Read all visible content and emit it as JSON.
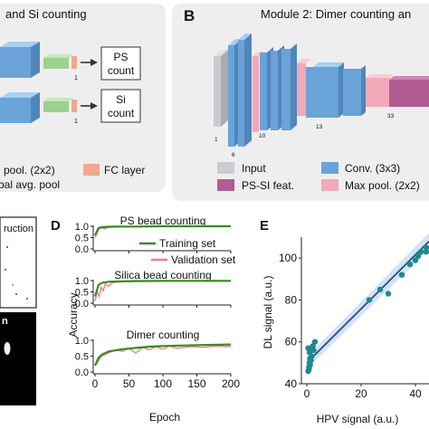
{
  "panelA": {
    "title": "and Si counting",
    "ps_label_1": "PS",
    "ps_label_2": "count",
    "si_label_1": "Si",
    "si_label_2": "count",
    "unit_top": "1",
    "unit_bottom": "1",
    "legend_pool": "pool. (2x2)",
    "legend_fc": "FC layer",
    "legend_avg": "bal avg. pool",
    "colors": {
      "panel_bg": "#eeeeee",
      "blue": "#6aa3d8",
      "green": "#9ed08f",
      "pink": "#f5b7c4",
      "salmon": "#f0a890"
    }
  },
  "panelB": {
    "letter": "B",
    "title": "Module 2: Dimer counting an",
    "layer_labels": [
      "1",
      "6",
      "10",
      "13",
      "33"
    ],
    "legend": {
      "input": "Input",
      "conv": "Conv. (3x3)",
      "ps_si": "PS-SI feat.",
      "maxpool": "Max pool. (2x2)"
    },
    "colors": {
      "input": "#c8ccd0",
      "conv": "#6aa3d8",
      "ps_si": "#b15b93",
      "maxpool": "#f2a9b9"
    }
  },
  "panelC": {
    "title_fragment": "ruction",
    "inset_label": "n"
  },
  "panelD": {
    "letter": "D",
    "ylabel": "Accuracy",
    "xlabel": "Epoch",
    "legend_train": "Training set",
    "legend_val": "Validation set"
  },
  "panelE": {
    "letter": "E",
    "ylabel": "DL signal (a.u.)",
    "xlabel": "HPV signal (a.u.)"
  },
  "chart_data": [
    {
      "type": "line",
      "title": "PS bead counting",
      "xlabel": "Epoch",
      "ylabel": "Accuracy",
      "xlim": [
        0,
        200
      ],
      "ylim": [
        0,
        1
      ],
      "xticks": [
        0,
        50,
        100,
        150,
        200
      ],
      "yticks": [
        "0.0",
        "0.5",
        "1.0"
      ],
      "series": [
        {
          "name": "Training set",
          "color": "#3a8a2a",
          "x": [
            0,
            5,
            10,
            20,
            40,
            60,
            100,
            150,
            200
          ],
          "y": [
            0.6,
            0.92,
            0.96,
            0.98,
            0.99,
            0.99,
            1.0,
            1.0,
            1.0
          ]
        },
        {
          "name": "Validation set",
          "color": "#f08080",
          "x": [
            0,
            5,
            10,
            15,
            20,
            30,
            40,
            60,
            100,
            150,
            200
          ],
          "y": [
            0.5,
            0.85,
            0.93,
            0.9,
            0.96,
            0.97,
            0.98,
            0.98,
            0.99,
            0.99,
            0.99
          ]
        }
      ]
    },
    {
      "type": "line",
      "title": "Silica bead counting",
      "xlabel": "Epoch",
      "ylabel": "Accuracy",
      "xlim": [
        0,
        200
      ],
      "ylim": [
        0,
        1
      ],
      "xticks": [
        0,
        50,
        100,
        150,
        200
      ],
      "yticks": [
        "0.0",
        "0.5",
        "1.0"
      ],
      "series": [
        {
          "name": "Training set",
          "color": "#3a8a2a",
          "x": [
            0,
            5,
            10,
            20,
            40,
            60,
            100,
            150,
            200
          ],
          "y": [
            0.3,
            0.8,
            0.9,
            0.95,
            0.97,
            0.98,
            0.99,
            0.99,
            0.99
          ]
        },
        {
          "name": "Validation set",
          "color": "#f08080",
          "x": [
            0,
            3,
            6,
            9,
            12,
            15,
            20,
            25,
            30,
            40,
            60,
            100,
            150,
            200
          ],
          "y": [
            0.1,
            0.5,
            0.3,
            0.7,
            0.55,
            0.85,
            0.75,
            0.9,
            0.93,
            0.95,
            0.96,
            0.97,
            0.97,
            0.97
          ]
        }
      ]
    },
    {
      "type": "line",
      "title": "Dimer counting",
      "xlabel": "Epoch",
      "ylabel": "Accuracy",
      "xlim": [
        0,
        200
      ],
      "ylim": [
        0,
        1
      ],
      "xticks": [
        0,
        50,
        100,
        150,
        200
      ],
      "yticks": [
        "0.0",
        "0.5",
        "1.0"
      ],
      "series": [
        {
          "name": "Training set",
          "color": "#3a8a2a",
          "x": [
            0,
            5,
            10,
            20,
            40,
            60,
            80,
            100,
            150,
            200
          ],
          "y": [
            0.2,
            0.45,
            0.55,
            0.65,
            0.72,
            0.76,
            0.8,
            0.82,
            0.85,
            0.87
          ]
        },
        {
          "name": "Validation set",
          "color": "#f08080",
          "x": [
            0,
            10,
            20,
            30,
            40,
            50,
            60,
            70,
            80,
            90,
            100,
            110,
            120,
            140,
            160,
            180,
            200
          ],
          "y": [
            0.2,
            0.5,
            0.6,
            0.7,
            0.65,
            0.75,
            0.6,
            0.78,
            0.7,
            0.8,
            0.72,
            0.82,
            0.75,
            0.8,
            0.78,
            0.82,
            0.8
          ]
        }
      ]
    },
    {
      "type": "scatter",
      "xlabel": "HPV signal (a.u.)",
      "ylabel": "DL signal (a.u.)",
      "xlim": [
        -2,
        45
      ],
      "ylim": [
        40,
        110
      ],
      "xticks": [
        0,
        20,
        40
      ],
      "yticks": [
        40,
        60,
        80,
        100
      ],
      "points": {
        "color": "#1f8a8a",
        "x": [
          0.5,
          0.8,
          1.0,
          1.2,
          1.5,
          1.0,
          2.0,
          0.5,
          1.8,
          2.2,
          3.0,
          2.5,
          1.2,
          0.8,
          23,
          27,
          30,
          35,
          38,
          40,
          41,
          42,
          44,
          45
        ],
        "y": [
          46,
          48,
          50,
          52,
          51,
          55,
          56,
          57,
          53,
          58,
          60,
          56,
          49,
          47,
          80,
          85,
          83,
          92,
          97,
          99,
          101,
          103,
          103,
          105
        ]
      },
      "fit": {
        "color": "#1f4e8c",
        "x": [
          0,
          45
        ],
        "y": [
          50,
          108
        ]
      }
    }
  ]
}
